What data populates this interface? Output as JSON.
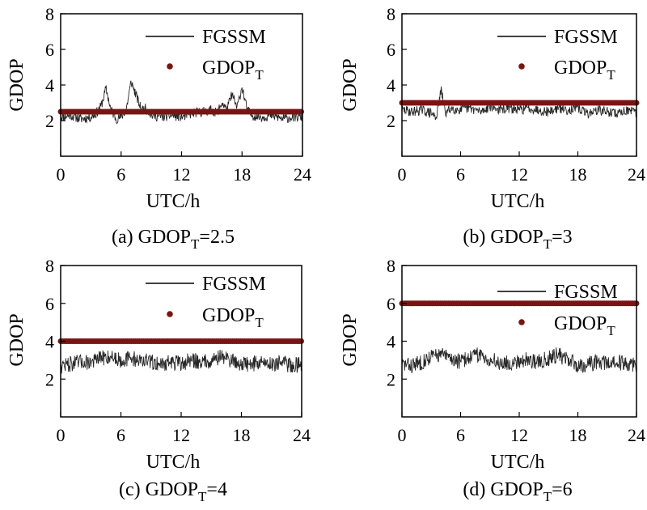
{
  "chart_data": [
    {
      "type": "line",
      "panel": "a",
      "caption_prefix": "(a) GDOP",
      "caption_sub": "T",
      "caption_suffix": "=2.5",
      "xlabel": "UTC/h",
      "ylabel": "GDOP",
      "xlim": [
        0,
        24
      ],
      "ylim": [
        0,
        8
      ],
      "xticks": [
        "0",
        "6",
        "12",
        "18",
        "24"
      ],
      "yticks": [
        "2",
        "4",
        "6",
        "8"
      ],
      "threshold": 2.5,
      "legend": {
        "line_label": "FGSSM",
        "dot_label_main": "GDOP",
        "dot_label_sub": "T"
      },
      "series": [
        {
          "name": "FGSSM",
          "x": [
            0,
            1,
            2,
            3,
            3.5,
            4,
            4.5,
            5,
            5.5,
            6,
            6.5,
            7,
            7.5,
            8,
            8.5,
            9,
            10,
            11,
            12,
            13,
            14,
            15,
            15.5,
            16,
            16.5,
            17,
            17.5,
            18,
            18.5,
            19,
            20,
            21,
            22,
            23,
            24
          ],
          "y": [
            2.2,
            2.3,
            2.1,
            2.2,
            2.4,
            2.8,
            3.8,
            2.6,
            2.1,
            2.2,
            2.6,
            4.2,
            3.4,
            2.6,
            2.7,
            2.3,
            2.2,
            2.3,
            2.2,
            2.4,
            2.5,
            2.6,
            2.4,
            3.0,
            2.6,
            3.5,
            2.7,
            3.9,
            2.6,
            2.3,
            2.2,
            2.3,
            2.1,
            2.2,
            2.2
          ]
        },
        {
          "name": "GDOP_T",
          "value": 2.5
        }
      ]
    },
    {
      "type": "line",
      "panel": "b",
      "caption_prefix": "(b) GDOP",
      "caption_sub": "T",
      "caption_suffix": "=3",
      "xlabel": "UTC/h",
      "ylabel": "GDOP",
      "xlim": [
        0,
        24
      ],
      "ylim": [
        0,
        8
      ],
      "xticks": [
        "0",
        "6",
        "12",
        "18",
        "24"
      ],
      "yticks": [
        "2",
        "4",
        "6",
        "8"
      ],
      "threshold": 3,
      "legend": {
        "line_label": "FGSSM",
        "dot_label_main": "GDOP",
        "dot_label_sub": "T"
      },
      "series": [
        {
          "name": "FGSSM",
          "x": [
            0,
            1,
            2,
            3,
            3.5,
            4,
            4.5,
            5,
            6,
            7,
            8,
            9,
            10,
            11,
            12,
            13,
            14,
            15,
            16,
            17,
            18,
            19,
            20,
            21,
            22,
            23,
            24
          ],
          "y": [
            2.6,
            2.5,
            2.6,
            2.4,
            2.2,
            3.7,
            2.4,
            2.7,
            2.6,
            2.7,
            2.5,
            2.8,
            2.6,
            2.7,
            2.6,
            2.7,
            2.6,
            2.5,
            2.7,
            2.6,
            2.7,
            2.4,
            2.6,
            2.5,
            2.4,
            2.6,
            2.4
          ]
        },
        {
          "name": "GDOP_T",
          "value": 3
        }
      ]
    },
    {
      "type": "line",
      "panel": "c",
      "caption_prefix": "(c) GDOP",
      "caption_sub": "T",
      "caption_suffix": "=4",
      "xlabel": "UTC/h",
      "ylabel": "GDOP",
      "xlim": [
        0,
        24
      ],
      "ylim": [
        0,
        8
      ],
      "xticks": [
        "0",
        "6",
        "12",
        "18",
        "24"
      ],
      "yticks": [
        "2",
        "4",
        "6",
        "8"
      ],
      "threshold": 4,
      "legend": {
        "line_label": "FGSSM",
        "dot_label_main": "GDOP",
        "dot_label_sub": "T"
      },
      "series": [
        {
          "name": "FGSSM",
          "x": [
            0,
            1,
            2,
            3,
            4,
            5,
            6,
            7,
            8,
            9,
            10,
            11,
            12,
            13,
            14,
            15,
            16,
            17,
            18,
            19,
            20,
            21,
            22,
            23,
            24
          ],
          "y": [
            2.7,
            2.8,
            2.9,
            2.9,
            3.1,
            3.2,
            3.0,
            3.1,
            3.0,
            2.9,
            2.8,
            2.9,
            2.8,
            3.0,
            2.9,
            3.0,
            3.2,
            3.0,
            2.8,
            2.8,
            2.9,
            2.8,
            2.9,
            2.7,
            2.8
          ]
        },
        {
          "name": "GDOP_T",
          "value": 4
        }
      ]
    },
    {
      "type": "line",
      "panel": "d",
      "caption_prefix": "(d) GDOP",
      "caption_sub": "T",
      "caption_suffix": "=6",
      "xlabel": "UTC/h",
      "ylabel": "GDOP",
      "xlim": [
        0,
        24
      ],
      "ylim": [
        0,
        8
      ],
      "xticks": [
        "0",
        "6",
        "12",
        "18",
        "24"
      ],
      "yticks": [
        "2",
        "4",
        "6",
        "8"
      ],
      "threshold": 6,
      "legend": {
        "line_label": "FGSSM",
        "dot_label_main": "GDOP",
        "dot_label_sub": "T"
      },
      "series": [
        {
          "name": "FGSSM",
          "x": [
            0,
            1,
            2,
            3,
            4,
            5,
            6,
            7,
            8,
            9,
            10,
            11,
            12,
            13,
            14,
            15,
            16,
            17,
            18,
            19,
            20,
            21,
            22,
            23,
            24
          ],
          "y": [
            2.8,
            2.7,
            2.9,
            3.2,
            3.3,
            3.1,
            2.9,
            3.2,
            3.3,
            3.0,
            2.9,
            2.8,
            3.0,
            3.0,
            2.9,
            3.1,
            3.3,
            3.0,
            2.7,
            2.8,
            2.9,
            2.8,
            2.9,
            2.8,
            2.8
          ]
        },
        {
          "name": "GDOP_T",
          "value": 6
        }
      ]
    }
  ],
  "colors": {
    "line": "#000000",
    "threshold": "#7a1414"
  }
}
